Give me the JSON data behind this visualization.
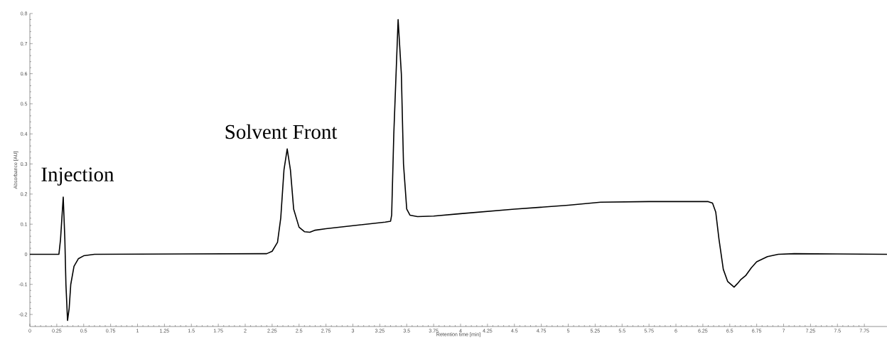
{
  "chart_data": {
    "type": "line",
    "xlabel": "Retention time [min]",
    "ylabel": "Absorbance [AU]",
    "xlim": [
      0,
      7.96
    ],
    "ylim": [
      -0.24,
      0.8
    ],
    "xticks": [
      0,
      0.25,
      0.5,
      0.75,
      1,
      1.25,
      1.5,
      1.75,
      2,
      2.25,
      2.5,
      2.75,
      3,
      3.25,
      3.5,
      3.75,
      4,
      4.25,
      4.5,
      4.75,
      5,
      5.25,
      5.5,
      5.75,
      6,
      6.25,
      6.5,
      6.75,
      7,
      7.25,
      7.5,
      7.75
    ],
    "yticks": [
      -0.2,
      -0.1,
      0,
      0.1,
      0.2,
      0.3,
      0.4,
      0.5,
      0.6,
      0.7,
      0.8
    ],
    "line_style": "solid",
    "marker": "none",
    "annotations": [
      {
        "text": "Injection",
        "x": 0.31,
        "y": 0.19
      },
      {
        "text": "Solvent Front",
        "x": 2.39,
        "y": 0.35
      }
    ],
    "series": [
      {
        "color": "#000000",
        "x": [
          0,
          0.27,
          0.285,
          0.31,
          0.325,
          0.335,
          0.35,
          0.365,
          0.38,
          0.41,
          0.45,
          0.5,
          0.6,
          2.2,
          2.25,
          2.3,
          2.33,
          2.36,
          2.39,
          2.42,
          2.45,
          2.5,
          2.55,
          2.6,
          2.65,
          2.75,
          3,
          3.3,
          3.35,
          3.36,
          3.38,
          3.42,
          3.45,
          3.47,
          3.5,
          3.53,
          3.6,
          3.75,
          4,
          4.5,
          5,
          5.3,
          5.75,
          6.3,
          6.34,
          6.37,
          6.4,
          6.44,
          6.48,
          6.54,
          6.57,
          6.6,
          6.65,
          6.7,
          6.75,
          6.85,
          6.95,
          7.1,
          7.5,
          7.96
        ],
        "values": [
          0,
          0,
          0.05,
          0.19,
          0.05,
          -0.1,
          -0.22,
          -0.18,
          -0.1,
          -0.04,
          -0.015,
          -0.005,
          0,
          0.002,
          0.01,
          0.04,
          0.12,
          0.28,
          0.35,
          0.28,
          0.15,
          0.09,
          0.075,
          0.073,
          0.08,
          0.085,
          0.095,
          0.107,
          0.11,
          0.13,
          0.4,
          0.78,
          0.6,
          0.3,
          0.15,
          0.13,
          0.125,
          0.127,
          0.135,
          0.15,
          0.163,
          0.173,
          0.175,
          0.175,
          0.17,
          0.14,
          0.05,
          -0.05,
          -0.09,
          -0.109,
          -0.098,
          -0.085,
          -0.07,
          -0.045,
          -0.025,
          -0.008,
          0,
          0.002,
          0.001,
          0
        ]
      }
    ]
  }
}
